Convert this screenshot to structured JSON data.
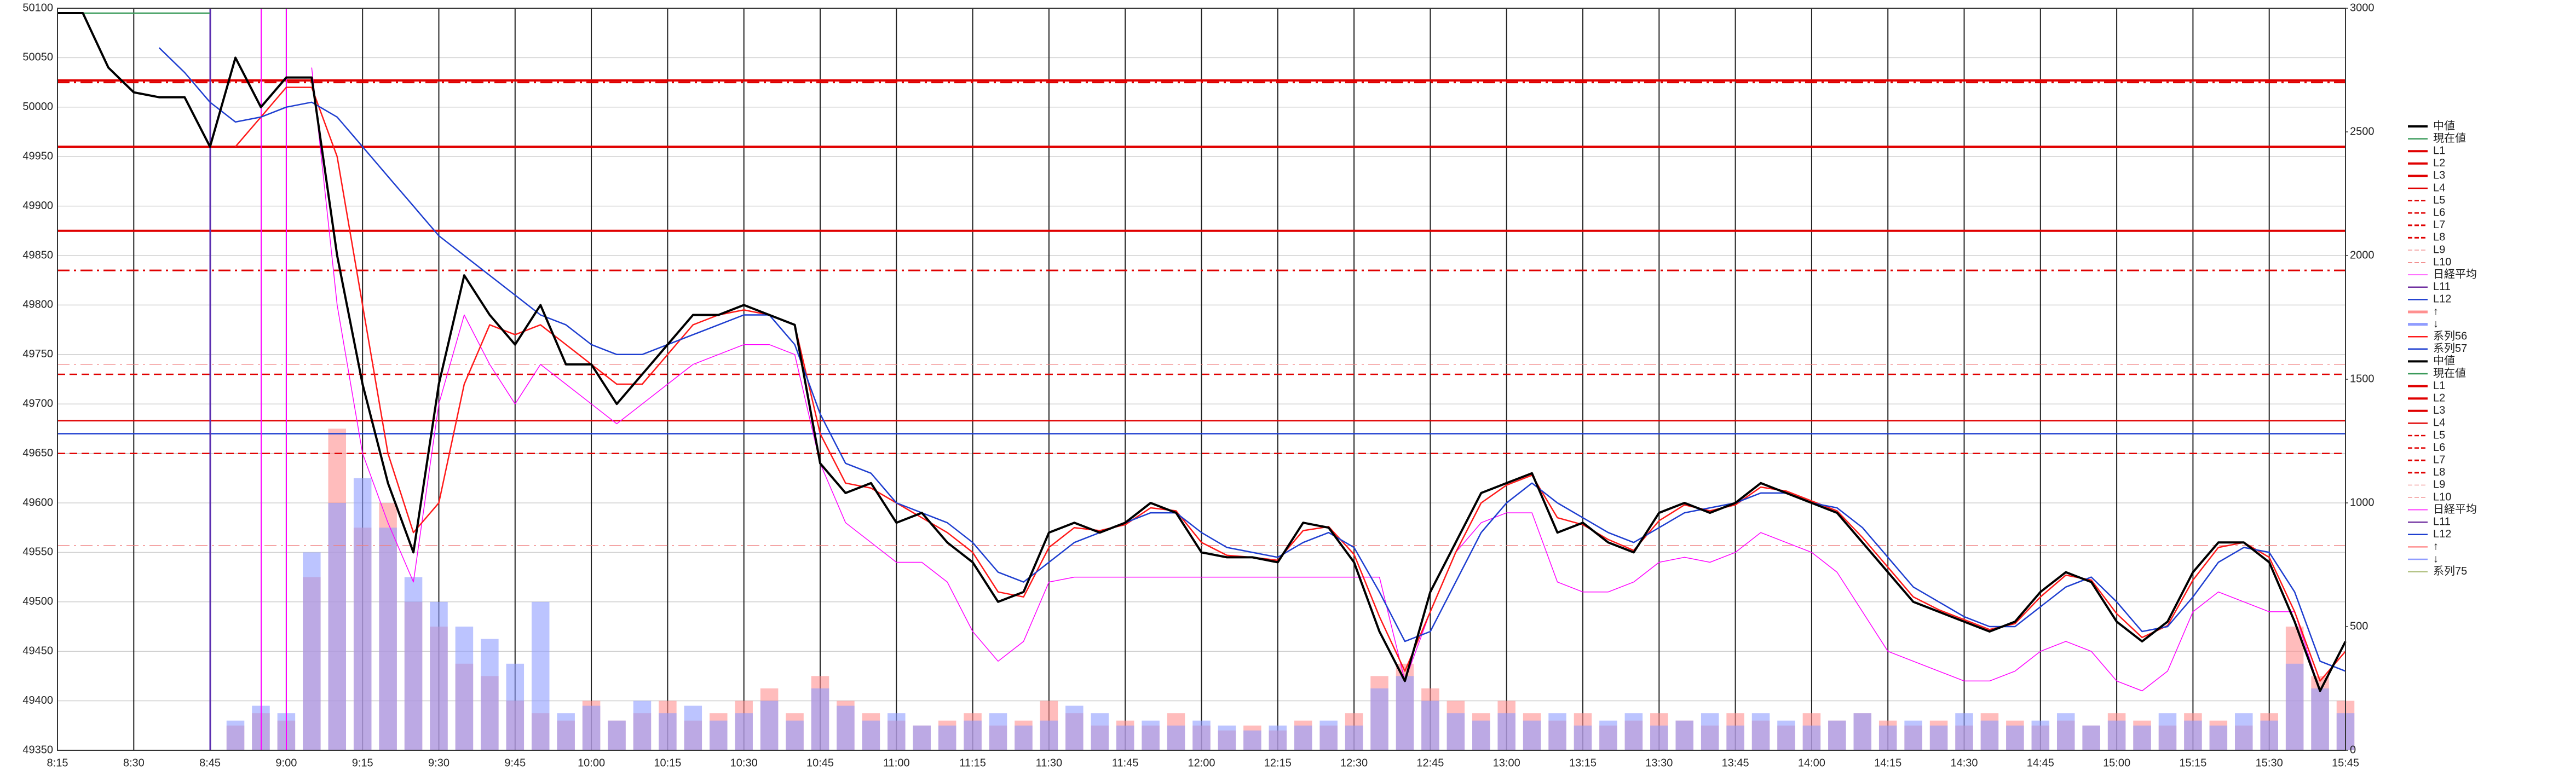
{
  "chart_data": {
    "type": "line",
    "grid": true,
    "legend": "right",
    "xlim": [
      495,
      945
    ],
    "ylim": [
      49350,
      50100
    ],
    "y2lim": [
      0,
      3000
    ],
    "yticks": [
      49350,
      49400,
      49450,
      49500,
      49550,
      49600,
      49650,
      49700,
      49750,
      49800,
      49850,
      49900,
      49950,
      50000,
      50050,
      50100
    ],
    "y2ticks": [
      0,
      500,
      1000,
      1500,
      2000,
      2500,
      3000
    ],
    "xticks": [
      {
        "value": 495,
        "label": "8:15"
      },
      {
        "value": 510,
        "label": "8:30"
      },
      {
        "value": 525,
        "label": "8:45"
      },
      {
        "value": 540,
        "label": "9:00"
      },
      {
        "value": 555,
        "label": "9:15"
      },
      {
        "value": 570,
        "label": "9:30"
      },
      {
        "value": 585,
        "label": "9:45"
      },
      {
        "value": 600,
        "label": "10:00"
      },
      {
        "value": 615,
        "label": "10:15"
      },
      {
        "value": 630,
        "label": "10:30"
      },
      {
        "value": 645,
        "label": "10:45"
      },
      {
        "value": 660,
        "label": "11:00"
      },
      {
        "value": 675,
        "label": "11:15"
      },
      {
        "value": 690,
        "label": "11:30"
      },
      {
        "value": 705,
        "label": "11:45"
      },
      {
        "value": 720,
        "label": "12:00"
      },
      {
        "value": 735,
        "label": "12:15"
      },
      {
        "value": 750,
        "label": "12:30"
      },
      {
        "value": 765,
        "label": "12:45"
      },
      {
        "value": 780,
        "label": "13:00"
      },
      {
        "value": 795,
        "label": "13:15"
      },
      {
        "value": 810,
        "label": "13:30"
      },
      {
        "value": 825,
        "label": "13:45"
      },
      {
        "value": 840,
        "label": "14:00"
      },
      {
        "value": 855,
        "label": "14:15"
      },
      {
        "value": 870,
        "label": "14:30"
      },
      {
        "value": 885,
        "label": "14:45"
      },
      {
        "value": 900,
        "label": "15:00"
      },
      {
        "value": 915,
        "label": "15:15"
      },
      {
        "value": 930,
        "label": "15:30"
      },
      {
        "value": 945,
        "label": "15:45"
      }
    ],
    "x": [
      495,
      500,
      505,
      510,
      515,
      520,
      525,
      530,
      535,
      540,
      545,
      550,
      555,
      560,
      565,
      570,
      575,
      580,
      585,
      590,
      595,
      600,
      605,
      610,
      615,
      620,
      625,
      630,
      635,
      640,
      645,
      650,
      655,
      660,
      665,
      670,
      675,
      680,
      685,
      690,
      695,
      700,
      705,
      710,
      715,
      720,
      725,
      730,
      735,
      740,
      745,
      750,
      755,
      760,
      765,
      770,
      775,
      780,
      785,
      790,
      795,
      800,
      805,
      810,
      815,
      820,
      825,
      830,
      835,
      840,
      845,
      850,
      855,
      860,
      865,
      870,
      875,
      880,
      885,
      890,
      895,
      900,
      905,
      910,
      915,
      920,
      925,
      930,
      935,
      940,
      945
    ],
    "series": [
      {
        "name": "中値",
        "color": "#000000",
        "style": "thick",
        "values": [
          50095,
          50095,
          50040,
          50015,
          50010,
          50010,
          49960,
          50050,
          50000,
          50030,
          50030,
          49850,
          49720,
          49620,
          49550,
          49720,
          49830,
          49790,
          49760,
          49800,
          49740,
          49740,
          49700,
          49730,
          49760,
          49790,
          49790,
          49800,
          49790,
          49780,
          49640,
          49610,
          49620,
          49580,
          49590,
          49560,
          49540,
          49500,
          49510,
          49570,
          49580,
          49570,
          49580,
          49600,
          49590,
          49550,
          49545,
          49545,
          49540,
          49580,
          49575,
          49540,
          49470,
          49420,
          49510,
          49560,
          49610,
          49620,
          49630,
          49570,
          49580,
          49560,
          49550,
          49590,
          49600,
          49590,
          49600,
          49620,
          49610,
          49600,
          49590,
          49560,
          49530,
          49500,
          49490,
          49480,
          49470,
          49480,
          49510,
          49530,
          49520,
          49480,
          49460,
          49480,
          49530,
          49560,
          49560,
          49540,
          49480,
          49410,
          49460
        ]
      },
      {
        "name": "現在値",
        "color": "#3a9a5a",
        "style": "solid",
        "x": [
          495,
          525
        ],
        "values": [
          50095,
          50095
        ]
      },
      {
        "name": "L1",
        "color": "#e00000",
        "style": "thick",
        "level": 50027
      },
      {
        "name": "L2",
        "color": "#e00000",
        "style": "thick",
        "level": 49960
      },
      {
        "name": "L3",
        "color": "#e00000",
        "style": "thick",
        "level": 49875
      },
      {
        "name": "L4",
        "color": "#e00000",
        "style": "solid",
        "level": 49683
      },
      {
        "name": "L5",
        "color": "#e00000",
        "style": "dashed",
        "level": 49650
      },
      {
        "name": "L6",
        "color": "#e00000",
        "style": "dashed",
        "level": 49730
      },
      {
        "name": "L7",
        "color": "#e00000",
        "style": "dashdot",
        "level": 50025
      },
      {
        "name": "L8",
        "color": "#e00000",
        "style": "dashdot",
        "level": 49835
      },
      {
        "name": "L9",
        "color": "#f08080",
        "style": "thin-dashdot",
        "level": 49740
      },
      {
        "name": "L10",
        "color": "#f08080",
        "style": "thin-dashdot",
        "level": 49557
      },
      {
        "name": "日経平均",
        "color": "#ff00ff",
        "style": "thin",
        "values": [
          null,
          null,
          null,
          null,
          null,
          null,
          null,
          null,
          null,
          null,
          50040,
          49800,
          49650,
          49580,
          49520,
          49700,
          49790,
          49740,
          49700,
          49740,
          49720,
          49700,
          49680,
          49700,
          49720,
          49740,
          49750,
          49760,
          49760,
          49750,
          49640,
          49580,
          49560,
          49540,
          49540,
          49520,
          49470,
          49440,
          49460,
          49520,
          49525,
          49525,
          49525,
          49525,
          49525,
          49525,
          49525,
          49525,
          49525,
          49525,
          49525,
          49525,
          49525,
          49420,
          49490,
          49550,
          49580,
          49590,
          49590,
          49520,
          49510,
          49510,
          49520,
          49540,
          49545,
          49540,
          49550,
          49570,
          49560,
          49550,
          49530,
          49490,
          49450,
          49440,
          49430,
          49420,
          49420,
          49430,
          49450,
          49460,
          49450,
          49420,
          49410,
          49430,
          49490,
          49510,
          49500,
          49490,
          49490,
          49410,
          null
        ]
      },
      {
        "name": "L11",
        "color": "#7030a0",
        "style": "solid"
      },
      {
        "name": "L12",
        "color": "#1f3fd0",
        "style": "solid",
        "level": 49670
      },
      {
        "name": "↑",
        "color": "#ff9090",
        "style": "bar",
        "axis": "y2",
        "values": [
          null,
          null,
          null,
          null,
          null,
          null,
          null,
          100,
          150,
          120,
          700,
          1300,
          900,
          1000,
          600,
          500,
          350,
          300,
          200,
          150,
          120,
          200,
          120,
          150,
          200,
          120,
          150,
          200,
          250,
          150,
          300,
          200,
          150,
          120,
          100,
          120,
          150,
          100,
          120,
          200,
          150,
          100,
          120,
          100,
          150,
          100,
          80,
          100,
          80,
          120,
          100,
          150,
          300,
          350,
          250,
          200,
          150,
          200,
          150,
          120,
          150,
          100,
          120,
          150,
          120,
          100,
          150,
          120,
          100,
          150,
          120,
          150,
          120,
          100,
          120,
          100,
          150,
          120,
          100,
          120,
          100,
          150,
          120,
          100,
          150,
          120,
          100,
          150,
          500,
          300,
          200
        ]
      },
      {
        "name": "↓",
        "color": "#8f9cff",
        "style": "bar",
        "axis": "y2",
        "values": [
          null,
          null,
          null,
          null,
          null,
          null,
          null,
          120,
          180,
          150,
          800,
          1000,
          1100,
          900,
          700,
          600,
          500,
          450,
          350,
          600,
          150,
          180,
          120,
          200,
          150,
          180,
          120,
          150,
          200,
          120,
          250,
          180,
          120,
          150,
          100,
          100,
          120,
          150,
          100,
          120,
          180,
          150,
          100,
          120,
          100,
          120,
          100,
          80,
          100,
          100,
          120,
          100,
          250,
          300,
          200,
          150,
          120,
          150,
          120,
          150,
          100,
          120,
          150,
          100,
          120,
          150,
          100,
          150,
          120,
          100,
          120,
          150,
          100,
          120,
          100,
          150,
          120,
          100,
          120,
          150,
          100,
          120,
          100,
          150,
          120,
          100,
          150,
          120,
          350,
          250,
          150
        ]
      },
      {
        "name": "系列56",
        "color": "#ff1a1a",
        "style": "solid",
        "values": [
          null,
          null,
          null,
          null,
          null,
          null,
          null,
          49960,
          49990,
          50020,
          50020,
          49950,
          49800,
          49650,
          49570,
          49600,
          49720,
          49780,
          49770,
          49780,
          49760,
          49740,
          49720,
          49720,
          49750,
          49780,
          49790,
          49795,
          49790,
          49780,
          49670,
          49620,
          49615,
          49600,
          49585,
          49570,
          49550,
          49510,
          49505,
          49555,
          49575,
          49572,
          49578,
          49595,
          49592,
          49560,
          49547,
          49545,
          49542,
          49572,
          49576,
          49548,
          49485,
          49430,
          49490,
          49550,
          49600,
          49618,
          49628,
          49585,
          49578,
          49563,
          49552,
          49582,
          49598,
          49592,
          49598,
          49616,
          49612,
          49602,
          49592,
          49565,
          49535,
          49505,
          49492,
          49482,
          49472,
          49478,
          49505,
          49527,
          49522,
          49488,
          49464,
          49476,
          49522,
          49555,
          49560,
          49545,
          49490,
          49420,
          49450
        ]
      },
      {
        "name": "系列57",
        "color": "#1f3fd0",
        "style": "solid",
        "values": [
          null,
          null,
          null,
          null,
          50060,
          50035,
          50005,
          49985,
          49990,
          50000,
          50005,
          49990,
          49960,
          49930,
          49900,
          49870,
          49850,
          49830,
          49810,
          49790,
          49780,
          49760,
          49750,
          49750,
          49760,
          49770,
          49780,
          49790,
          49790,
          49760,
          49690,
          49640,
          49630,
          49600,
          49590,
          49580,
          49560,
          49530,
          49520,
          49540,
          49560,
          49570,
          49580,
          49590,
          49590,
          49570,
          49555,
          49550,
          49545,
          49560,
          49570,
          49555,
          49510,
          49460,
          49470,
          49520,
          49570,
          49600,
          49620,
          49600,
          49585,
          49570,
          49560,
          49575,
          49590,
          49595,
          49600,
          49610,
          49610,
          49600,
          49595,
          49575,
          49545,
          49515,
          49500,
          49485,
          49475,
          49475,
          49495,
          49515,
          49525,
          49500,
          49470,
          49475,
          49505,
          49540,
          49555,
          49550,
          49510,
          49440,
          49430
        ]
      },
      {
        "name": "中値",
        "color": "#000000",
        "style": "thick"
      },
      {
        "name": "現在値",
        "color": "#3a9a5a",
        "style": "solid"
      },
      {
        "name": "L1",
        "color": "#e00000",
        "style": "thick"
      },
      {
        "name": "L2",
        "color": "#e00000",
        "style": "thick"
      },
      {
        "name": "L3",
        "color": "#e00000",
        "style": "thick"
      },
      {
        "name": "L4",
        "color": "#e00000",
        "style": "solid"
      },
      {
        "name": "L5",
        "color": "#e00000",
        "style": "dashed"
      },
      {
        "name": "L6",
        "color": "#e00000",
        "style": "dashed"
      },
      {
        "name": "L7",
        "color": "#e00000",
        "style": "dashdot"
      },
      {
        "name": "L8",
        "color": "#e00000",
        "style": "dashdot"
      },
      {
        "name": "L9",
        "color": "#f08080",
        "style": "thin-dashdot"
      },
      {
        "name": "L10",
        "color": "#f08080",
        "style": "thin-dashdot"
      },
      {
        "name": "日経平均",
        "color": "#ff00ff",
        "style": "thin"
      },
      {
        "name": "L11",
        "color": "#7030a0",
        "style": "solid"
      },
      {
        "name": "L12",
        "color": "#1f3fd0",
        "style": "solid"
      },
      {
        "name": "↑",
        "color": "#ff9090",
        "style": "solid"
      },
      {
        "name": "↓",
        "color": "#8f9cff",
        "style": "solid"
      },
      {
        "name": "系列75",
        "color": "#b0c080",
        "style": "solid"
      }
    ]
  }
}
